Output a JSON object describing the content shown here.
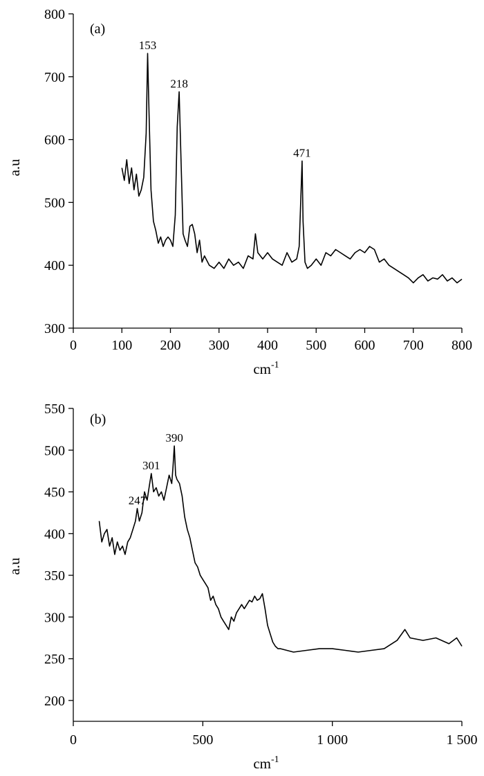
{
  "chart_data": [
    {
      "type": "line",
      "panel_label": "(a)",
      "xlabel": "cm",
      "xlabel_sup": "-1",
      "ylabel": "a.u",
      "xlim": [
        0,
        800
      ],
      "ylim": [
        300,
        800
      ],
      "xticks": [
        0,
        100,
        200,
        300,
        400,
        500,
        600,
        700,
        800
      ],
      "xtick_labels": [
        "0",
        "100",
        "200",
        "300",
        "400",
        "500",
        "600",
        "700",
        "800"
      ],
      "yticks": [
        300,
        400,
        500,
        600,
        700,
        800
      ],
      "ytick_labels": [
        "300",
        "400",
        "500",
        "600",
        "700",
        "800"
      ],
      "peaks": [
        {
          "label": "153",
          "x": 153,
          "y": 737
        },
        {
          "label": "218",
          "x": 218,
          "y": 676
        },
        {
          "label": "471",
          "x": 471,
          "y": 566
        }
      ],
      "series": [
        {
          "x": [
            100,
            105,
            110,
            115,
            120,
            125,
            130,
            135,
            140,
            145,
            150,
            153,
            156,
            160,
            165,
            170,
            175,
            180,
            185,
            190,
            195,
            200,
            205,
            210,
            214,
            218,
            222,
            226,
            230,
            235,
            240,
            245,
            250,
            255,
            260,
            265,
            270,
            280,
            290,
            300,
            310,
            320,
            330,
            340,
            350,
            360,
            370,
            375,
            380,
            390,
            400,
            410,
            420,
            430,
            440,
            450,
            460,
            465,
            469,
            471,
            473,
            477,
            482,
            490,
            500,
            510,
            520,
            530,
            540,
            550,
            560,
            570,
            580,
            590,
            600,
            610,
            620,
            630,
            640,
            650,
            660,
            670,
            680,
            690,
            700,
            710,
            720,
            730,
            740,
            750,
            760,
            770,
            780,
            790,
            800
          ],
          "y": [
            555,
            535,
            568,
            530,
            555,
            520,
            545,
            510,
            520,
            540,
            610,
            737,
            640,
            520,
            470,
            455,
            435,
            445,
            430,
            440,
            445,
            440,
            430,
            480,
            620,
            676,
            560,
            450,
            440,
            430,
            462,
            465,
            450,
            420,
            440,
            405,
            415,
            400,
            395,
            405,
            395,
            410,
            400,
            405,
            395,
            415,
            410,
            450,
            420,
            410,
            420,
            410,
            405,
            400,
            420,
            405,
            410,
            430,
            520,
            566,
            470,
            405,
            395,
            400,
            410,
            400,
            420,
            415,
            425,
            420,
            415,
            410,
            420,
            425,
            420,
            430,
            425,
            405,
            410,
            400,
            395,
            390,
            385,
            380,
            372,
            380,
            385,
            375,
            380,
            378,
            385,
            375,
            380,
            372,
            378
          ]
        }
      ]
    },
    {
      "type": "line",
      "panel_label": "(b)",
      "xlabel": "cm",
      "xlabel_sup": "-1",
      "ylabel": "a.u",
      "xlim": [
        0,
        1500
      ],
      "ylim": [
        175,
        550
      ],
      "xticks": [
        0,
        500,
        1000,
        1500
      ],
      "xtick_labels": [
        "0",
        "500",
        "1 000",
        "1 500"
      ],
      "yticks": [
        200,
        250,
        300,
        350,
        400,
        450,
        500,
        550
      ],
      "ytick_labels": [
        "200",
        "250",
        "300",
        "350",
        "400",
        "450",
        "500",
        "550"
      ],
      "peaks": [
        {
          "label": "247",
          "x": 247,
          "y": 430
        },
        {
          "label": "301",
          "x": 301,
          "y": 472
        },
        {
          "label": "390",
          "x": 390,
          "y": 505
        }
      ],
      "series": [
        {
          "x": [
            100,
            110,
            120,
            130,
            140,
            150,
            160,
            170,
            180,
            190,
            200,
            210,
            220,
            230,
            240,
            247,
            255,
            265,
            275,
            285,
            295,
            301,
            310,
            320,
            330,
            340,
            350,
            360,
            370,
            380,
            385,
            390,
            395,
            400,
            410,
            420,
            430,
            440,
            450,
            460,
            470,
            480,
            490,
            500,
            510,
            520,
            530,
            540,
            550,
            560,
            570,
            580,
            590,
            600,
            610,
            620,
            630,
            640,
            650,
            660,
            670,
            680,
            690,
            700,
            710,
            720,
            730,
            740,
            750,
            760,
            770,
            780,
            790,
            800,
            850,
            900,
            950,
            1000,
            1050,
            1100,
            1150,
            1200,
            1250,
            1280,
            1300,
            1350,
            1400,
            1450,
            1480,
            1500
          ],
          "y": [
            415,
            390,
            400,
            405,
            385,
            395,
            375,
            390,
            380,
            385,
            375,
            390,
            395,
            405,
            415,
            430,
            415,
            425,
            450,
            440,
            460,
            472,
            450,
            455,
            445,
            450,
            440,
            455,
            470,
            460,
            480,
            505,
            470,
            465,
            460,
            445,
            420,
            405,
            395,
            380,
            365,
            360,
            350,
            345,
            340,
            335,
            320,
            325,
            315,
            310,
            300,
            295,
            290,
            285,
            300,
            295,
            305,
            310,
            315,
            310,
            315,
            320,
            318,
            325,
            320,
            322,
            328,
            310,
            290,
            280,
            270,
            265,
            262,
            262,
            258,
            260,
            262,
            262,
            260,
            258,
            260,
            262,
            272,
            285,
            275,
            272,
            275,
            268,
            275,
            265
          ]
        }
      ]
    }
  ]
}
